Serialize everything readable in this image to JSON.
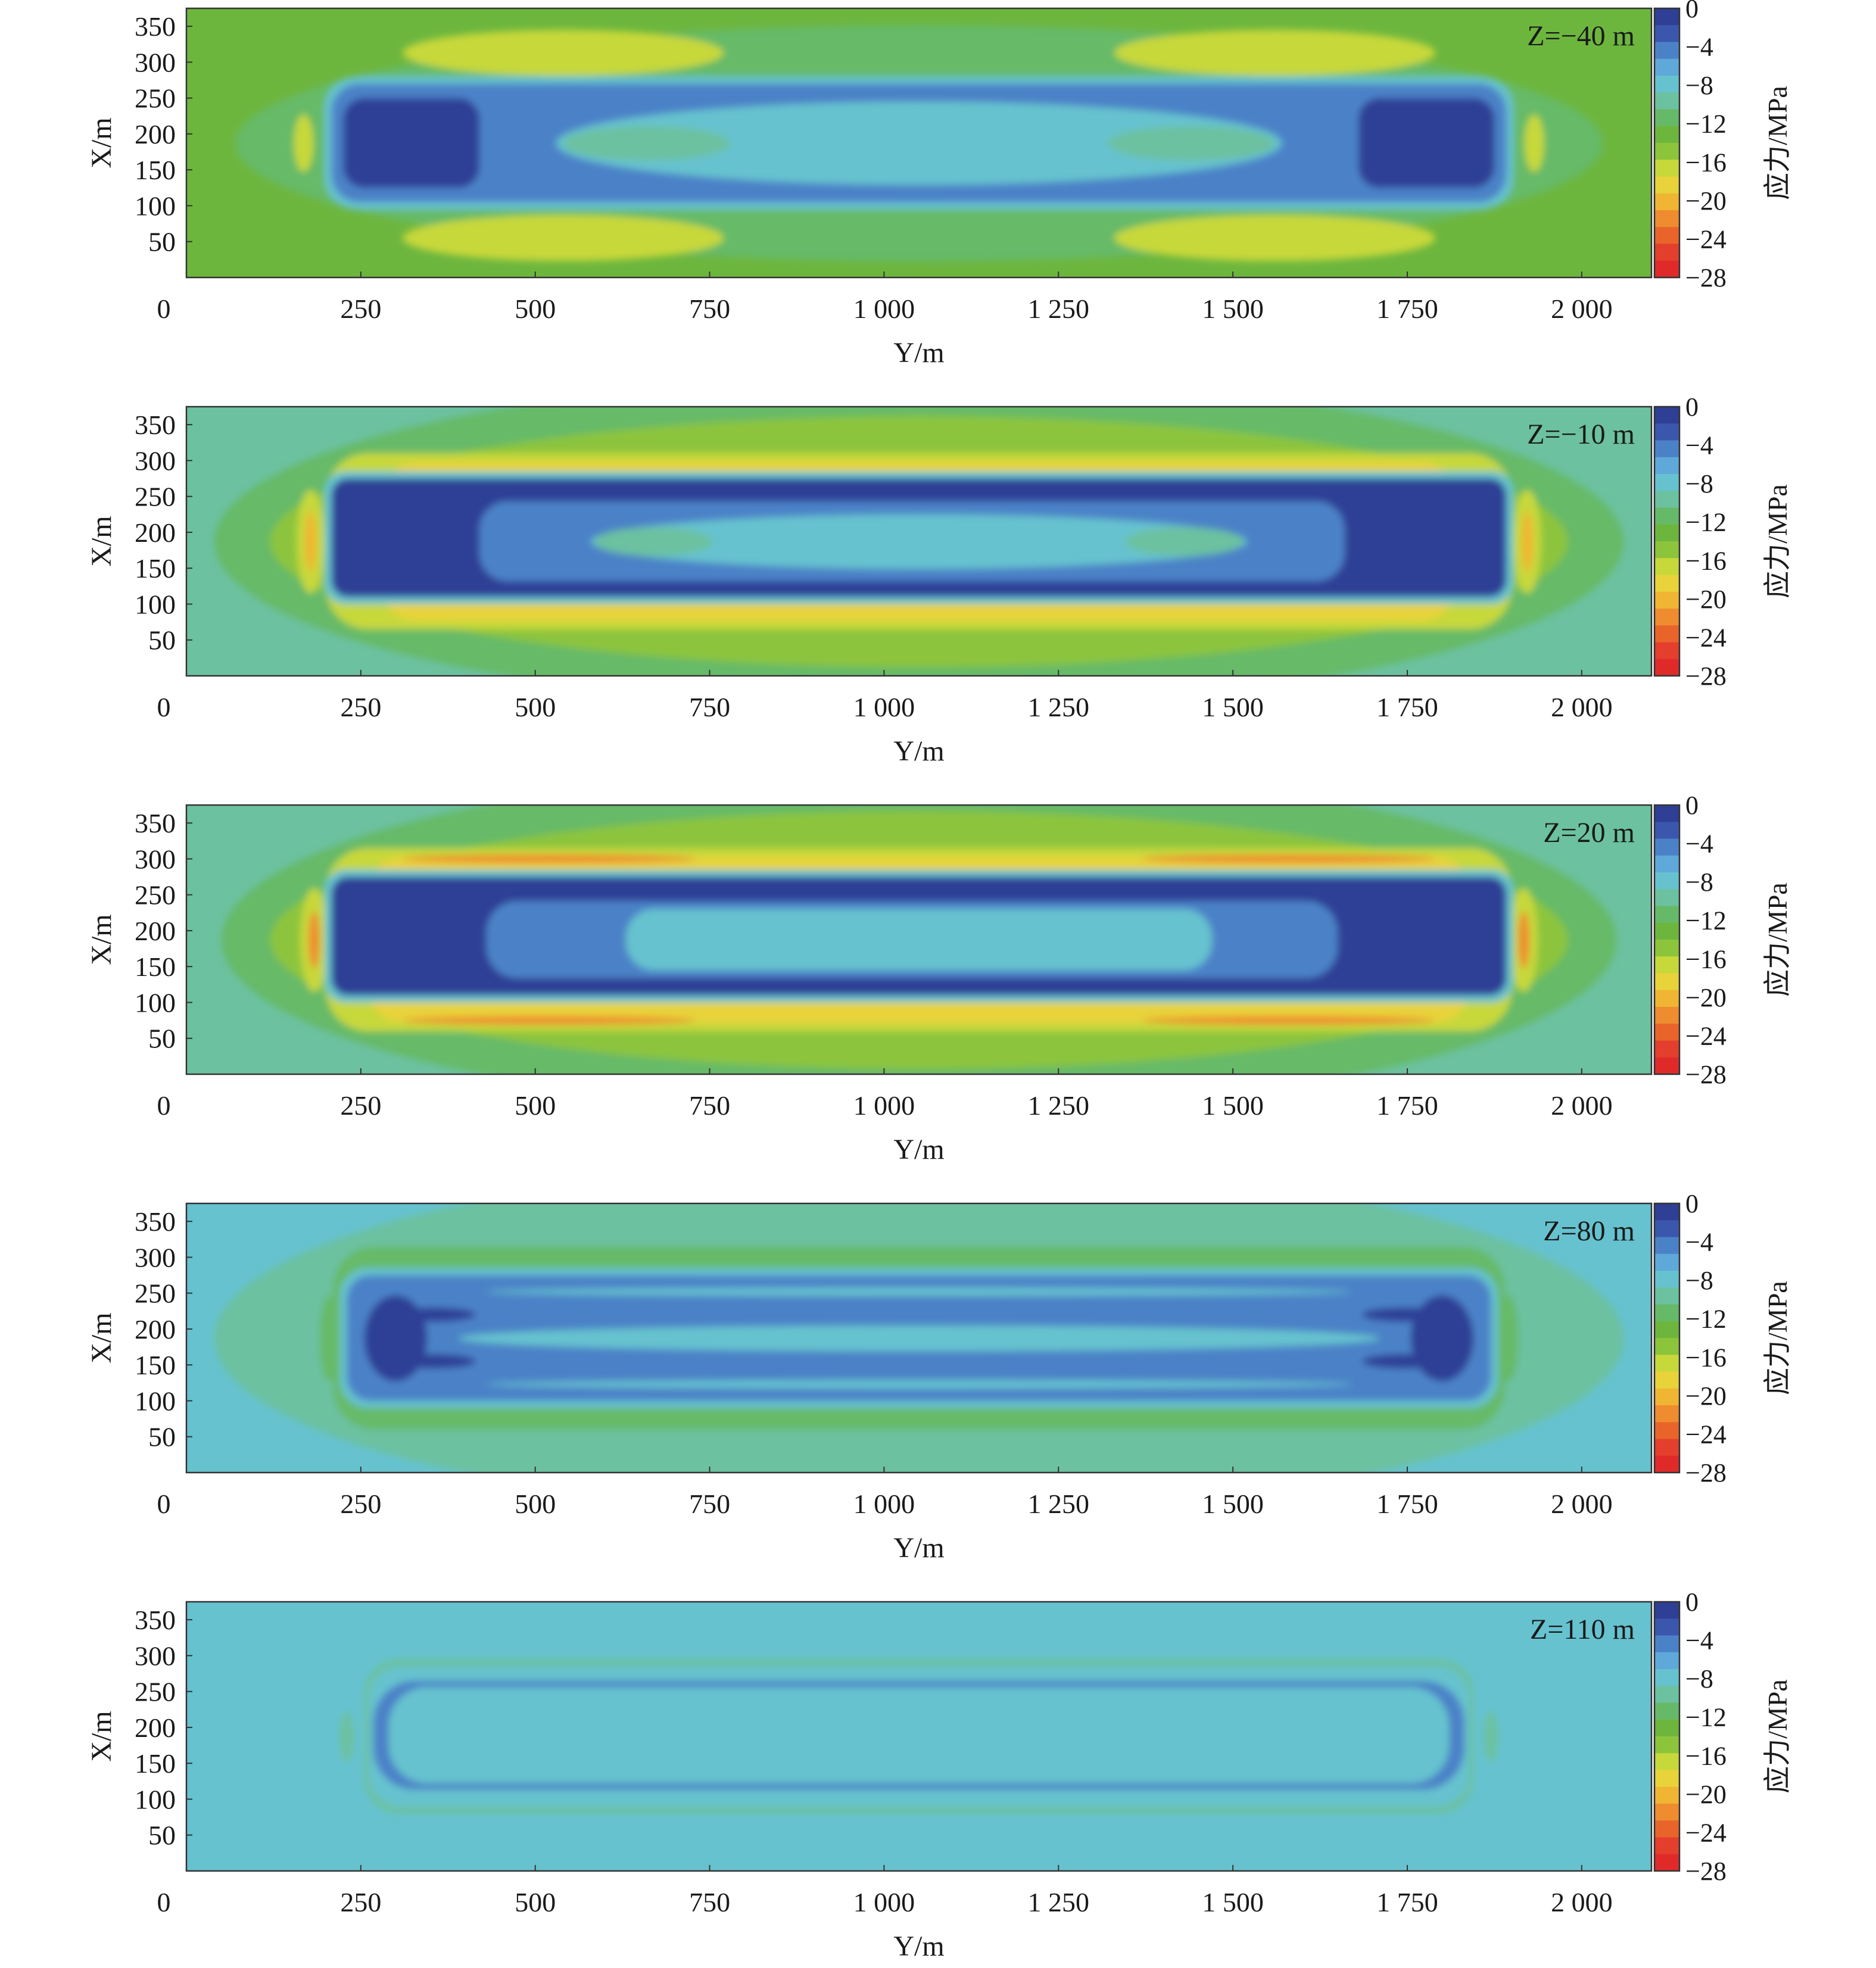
{
  "colorbar": {
    "title": "应力/MPa",
    "tick_labels": [
      "0",
      "−4",
      "−8",
      "−12",
      "−16",
      "−20",
      "−24",
      "−28"
    ],
    "bands": [
      "#2e3f95",
      "#3b57ad",
      "#4b82c7",
      "#5ea9d9",
      "#66c2cf",
      "#6cc1a0",
      "#66ba67",
      "#6db63e",
      "#8cc43c",
      "#c7d83a",
      "#e8d33a",
      "#f0b532",
      "#ee8c2f",
      "#e9642b",
      "#e43f2c",
      "#e02a2a"
    ]
  },
  "chart_data": [
    {
      "type": "heatmap",
      "panel_label": "Z=−40 m",
      "x_ticks": [
        "0",
        "250",
        "500",
        "750",
        "1 000",
        "1 250",
        "1 500",
        "1 750",
        "2 000"
      ],
      "y_ticks": [
        "50",
        "100",
        "150",
        "200",
        "250",
        "300",
        "350"
      ],
      "xlabel": "Y/m",
      "ylabel": "X/m",
      "xlim": [
        0,
        2100
      ],
      "ylim": [
        0,
        375
      ],
      "clim": [
        -28,
        0
      ],
      "background_value": -13,
      "regions": [
        {
          "shape": "ellipse",
          "cx": 1050,
          "cy": 187,
          "rx": 980,
          "ry": 165,
          "value": -12
        },
        {
          "shape": "ellipse",
          "cx": 540,
          "cy": 313,
          "rx": 230,
          "ry": 32,
          "value": -16
        },
        {
          "shape": "ellipse",
          "cx": 1560,
          "cy": 313,
          "rx": 230,
          "ry": 32,
          "value": -16
        },
        {
          "shape": "ellipse",
          "cx": 540,
          "cy": 55,
          "rx": 230,
          "ry": 32,
          "value": -16
        },
        {
          "shape": "ellipse",
          "cx": 1560,
          "cy": 55,
          "rx": 230,
          "ry": 32,
          "value": -16
        },
        {
          "shape": "ellipse",
          "cx": 168,
          "cy": 187,
          "rx": 14,
          "ry": 40,
          "value": -16
        },
        {
          "shape": "ellipse",
          "cx": 1932,
          "cy": 187,
          "rx": 14,
          "ry": 40,
          "value": -16
        },
        {
          "shape": "rect",
          "x0": 198,
          "x1": 1902,
          "y0": 95,
          "y1": 280,
          "r": 46,
          "value": -8
        },
        {
          "shape": "rect",
          "x0": 208,
          "x1": 1892,
          "y0": 105,
          "y1": 270,
          "r": 40,
          "value": -5
        },
        {
          "shape": "ellipse",
          "cx": 1050,
          "cy": 187,
          "rx": 520,
          "ry": 58,
          "value": -8
        },
        {
          "shape": "ellipse",
          "cx": 660,
          "cy": 187,
          "rx": 120,
          "ry": 24,
          "value": -10
        },
        {
          "shape": "ellipse",
          "cx": 1440,
          "cy": 187,
          "rx": 120,
          "ry": 24,
          "value": -10
        },
        {
          "shape": "rect",
          "x0": 225,
          "x1": 420,
          "y0": 125,
          "y1": 250,
          "r": 30,
          "value": -1
        },
        {
          "shape": "rect",
          "x0": 1680,
          "x1": 1875,
          "y0": 125,
          "y1": 250,
          "r": 30,
          "value": -1
        }
      ]
    },
    {
      "type": "heatmap",
      "panel_label": "Z=−10 m",
      "x_ticks": [
        "0",
        "250",
        "500",
        "750",
        "1 000",
        "1 250",
        "1 500",
        "1 750",
        "2 000"
      ],
      "y_ticks": [
        "50",
        "100",
        "150",
        "200",
        "250",
        "300",
        "350"
      ],
      "xlabel": "Y/m",
      "ylabel": "X/m",
      "xlim": [
        0,
        2100
      ],
      "ylim": [
        0,
        375
      ],
      "clim": [
        -28,
        0
      ],
      "background_value": -10,
      "regions": [
        {
          "shape": "ellipse",
          "cx": 1050,
          "cy": 187,
          "rx": 1010,
          "ry": 230,
          "value": -12
        },
        {
          "shape": "ellipse",
          "cx": 1050,
          "cy": 187,
          "rx": 930,
          "ry": 175,
          "value": -14
        },
        {
          "shape": "rect",
          "x0": 200,
          "x1": 1900,
          "y0": 65,
          "y1": 310,
          "r": 60,
          "value": -16
        },
        {
          "shape": "rect",
          "x0": 280,
          "x1": 1820,
          "y0": 77,
          "y1": 298,
          "r": 50,
          "value": -19
        },
        {
          "shape": "ellipse",
          "cx": 178,
          "cy": 187,
          "rx": 20,
          "ry": 72,
          "value": -16
        },
        {
          "shape": "ellipse",
          "cx": 1922,
          "cy": 187,
          "rx": 20,
          "ry": 72,
          "value": -16
        },
        {
          "shape": "ellipse",
          "cx": 178,
          "cy": 187,
          "rx": 8,
          "ry": 42,
          "value": -20
        },
        {
          "shape": "ellipse",
          "cx": 1922,
          "cy": 187,
          "rx": 8,
          "ry": 42,
          "value": -20
        },
        {
          "shape": "rect",
          "x0": 198,
          "x1": 1902,
          "y0": 100,
          "y1": 285,
          "r": 30,
          "value": -8
        },
        {
          "shape": "rect",
          "x0": 208,
          "x1": 1892,
          "y0": 110,
          "y1": 275,
          "r": 24,
          "value": -1
        },
        {
          "shape": "rect",
          "x0": 420,
          "x1": 1660,
          "y0": 132,
          "y1": 243,
          "r": 40,
          "value": -5
        },
        {
          "shape": "ellipse",
          "cx": 1050,
          "cy": 187,
          "rx": 470,
          "ry": 38,
          "value": -8
        },
        {
          "shape": "ellipse",
          "cx": 670,
          "cy": 187,
          "rx": 85,
          "ry": 20,
          "value": -10
        },
        {
          "shape": "ellipse",
          "cx": 1430,
          "cy": 187,
          "rx": 85,
          "ry": 20,
          "value": -10
        }
      ]
    },
    {
      "type": "heatmap",
      "panel_label": "Z=20 m",
      "x_ticks": [
        "0",
        "250",
        "500",
        "750",
        "1 000",
        "1 250",
        "1 500",
        "1 750",
        "2 000"
      ],
      "y_ticks": [
        "50",
        "100",
        "150",
        "200",
        "250",
        "300",
        "350"
      ],
      "xlabel": "Y/m",
      "ylabel": "X/m",
      "xlim": [
        0,
        2100
      ],
      "ylim": [
        0,
        375
      ],
      "clim": [
        -28,
        0
      ],
      "background_value": -10,
      "regions": [
        {
          "shape": "ellipse",
          "cx": 1050,
          "cy": 187,
          "rx": 1000,
          "ry": 240,
          "value": -12
        },
        {
          "shape": "ellipse",
          "cx": 1050,
          "cy": 187,
          "rx": 930,
          "ry": 180,
          "value": -14
        },
        {
          "shape": "rect",
          "x0": 200,
          "x1": 1900,
          "y0": 60,
          "y1": 315,
          "r": 60,
          "value": -16
        },
        {
          "shape": "rect",
          "x0": 260,
          "x1": 1840,
          "y0": 72,
          "y1": 303,
          "r": 50,
          "value": -19
        },
        {
          "shape": "ellipse",
          "cx": 520,
          "cy": 300,
          "rx": 210,
          "ry": 6,
          "value": -22
        },
        {
          "shape": "ellipse",
          "cx": 1580,
          "cy": 300,
          "rx": 210,
          "ry": 6,
          "value": -22
        },
        {
          "shape": "ellipse",
          "cx": 520,
          "cy": 75,
          "rx": 210,
          "ry": 6,
          "value": -22
        },
        {
          "shape": "ellipse",
          "cx": 1580,
          "cy": 75,
          "rx": 210,
          "ry": 6,
          "value": -22
        },
        {
          "shape": "ellipse",
          "cx": 183,
          "cy": 187,
          "rx": 20,
          "ry": 72,
          "value": -16
        },
        {
          "shape": "ellipse",
          "cx": 1917,
          "cy": 187,
          "rx": 20,
          "ry": 72,
          "value": -16
        },
        {
          "shape": "ellipse",
          "cx": 183,
          "cy": 187,
          "rx": 8,
          "ry": 40,
          "value": -22
        },
        {
          "shape": "ellipse",
          "cx": 1917,
          "cy": 187,
          "rx": 8,
          "ry": 40,
          "value": -22
        },
        {
          "shape": "rect",
          "x0": 198,
          "x1": 1902,
          "y0": 100,
          "y1": 285,
          "r": 30,
          "value": -8
        },
        {
          "shape": "rect",
          "x0": 208,
          "x1": 1892,
          "y0": 110,
          "y1": 275,
          "r": 24,
          "value": -1
        },
        {
          "shape": "rect",
          "x0": 430,
          "x1": 1650,
          "y0": 134,
          "y1": 241,
          "r": 44,
          "value": -5
        },
        {
          "shape": "rect",
          "x0": 630,
          "x1": 1470,
          "y0": 145,
          "y1": 230,
          "r": 40,
          "value": -7
        }
      ]
    },
    {
      "type": "heatmap",
      "panel_label": "Z=80 m",
      "x_ticks": [
        "0",
        "250",
        "500",
        "750",
        "1 000",
        "1 250",
        "1 500",
        "1 750",
        "2 000"
      ],
      "y_ticks": [
        "50",
        "100",
        "150",
        "200",
        "250",
        "300",
        "350"
      ],
      "xlabel": "Y/m",
      "ylabel": "X/m",
      "xlim": [
        0,
        2100
      ],
      "ylim": [
        0,
        375
      ],
      "clim": [
        -28,
        0
      ],
      "background_value": -7,
      "regions": [
        {
          "shape": "ellipse",
          "cx": 1050,
          "cy": 187,
          "rx": 1010,
          "ry": 245,
          "value": -10
        },
        {
          "shape": "rect",
          "x0": 210,
          "x1": 1890,
          "y0": 60,
          "y1": 315,
          "r": 60,
          "value": -12
        },
        {
          "shape": "ellipse",
          "cx": 205,
          "cy": 187,
          "rx": 14,
          "ry": 60,
          "value": -12
        },
        {
          "shape": "ellipse",
          "cx": 1895,
          "cy": 187,
          "rx": 14,
          "ry": 60,
          "value": -12
        },
        {
          "shape": "rect",
          "x0": 220,
          "x1": 1880,
          "y0": 90,
          "y1": 285,
          "r": 40,
          "value": -8
        },
        {
          "shape": "rect",
          "x0": 230,
          "x1": 1870,
          "y0": 100,
          "y1": 275,
          "r": 34,
          "value": -5
        },
        {
          "shape": "ellipse",
          "cx": 1050,
          "cy": 252,
          "rx": 620,
          "ry": 6,
          "value": -7
        },
        {
          "shape": "ellipse",
          "cx": 1050,
          "cy": 123,
          "rx": 620,
          "ry": 6,
          "value": -7
        },
        {
          "shape": "ellipse",
          "cx": 1050,
          "cy": 187,
          "rx": 660,
          "ry": 18,
          "value": -7
        },
        {
          "shape": "ellipse",
          "cx": 300,
          "cy": 187,
          "rx": 45,
          "ry": 60,
          "value": -1
        },
        {
          "shape": "ellipse",
          "cx": 1800,
          "cy": 187,
          "rx": 45,
          "ry": 60,
          "value": -1
        },
        {
          "shape": "ellipse",
          "cx": 355,
          "cy": 220,
          "rx": 60,
          "ry": 10,
          "value": -1
        },
        {
          "shape": "ellipse",
          "cx": 355,
          "cy": 155,
          "rx": 60,
          "ry": 10,
          "value": -1
        },
        {
          "shape": "ellipse",
          "cx": 1745,
          "cy": 220,
          "rx": 60,
          "ry": 10,
          "value": -1
        },
        {
          "shape": "ellipse",
          "cx": 1745,
          "cy": 155,
          "rx": 60,
          "ry": 10,
          "value": -1
        }
      ]
    },
    {
      "type": "heatmap",
      "panel_label": "Z=110 m",
      "x_ticks": [
        "0",
        "250",
        "500",
        "750",
        "1 000",
        "1 250",
        "1 500",
        "1 750",
        "2 000"
      ],
      "y_ticks": [
        "50",
        "100",
        "150",
        "200",
        "250",
        "300",
        "350"
      ],
      "xlabel": "Y/m",
      "ylabel": "X/m",
      "xlim": [
        0,
        2100
      ],
      "ylim": [
        0,
        375
      ],
      "clim": [
        -28,
        0
      ],
      "background_value": -7,
      "regions": [
        {
          "shape": "rect",
          "x0": 255,
          "x1": 1845,
          "y0": 80,
          "y1": 295,
          "r": 50,
          "value": -9
        },
        {
          "shape": "ellipse",
          "cx": 230,
          "cy": 187,
          "rx": 10,
          "ry": 35,
          "value": -9
        },
        {
          "shape": "ellipse",
          "cx": 1870,
          "cy": 187,
          "rx": 10,
          "ry": 35,
          "value": -9
        },
        {
          "shape": "rect",
          "x0": 262,
          "x1": 1838,
          "y0": 90,
          "y1": 285,
          "r": 46,
          "value": -7
        },
        {
          "shape": "rect",
          "x0": 268,
          "x1": 1832,
          "y0": 113,
          "y1": 265,
          "r": 60,
          "value": -5
        },
        {
          "shape": "rect",
          "x0": 290,
          "x1": 1810,
          "y0": 122,
          "y1": 256,
          "r": 55,
          "value": -7
        }
      ]
    }
  ]
}
